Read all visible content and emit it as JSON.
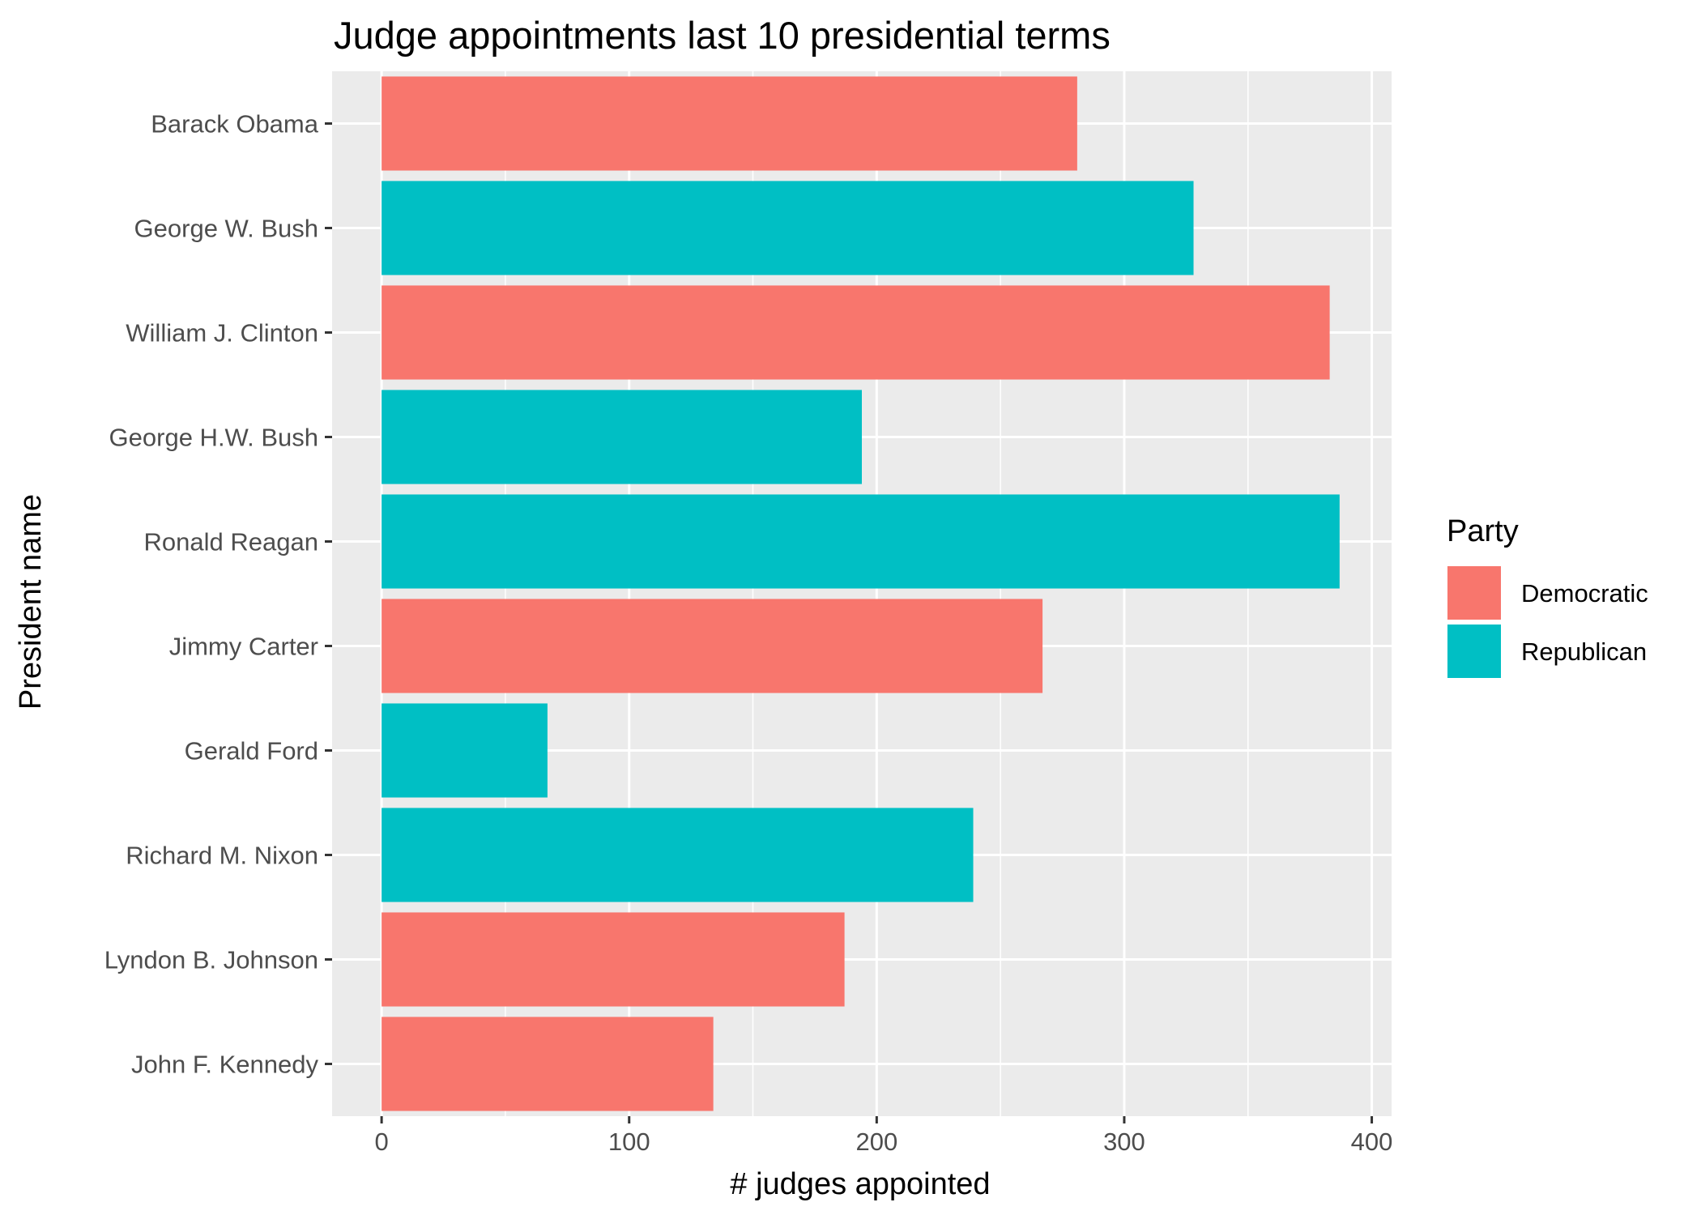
{
  "chart_data": {
    "type": "bar",
    "orientation": "horizontal",
    "title": "Judge appointments last 10 presidential terms",
    "xlabel": "# judges appointed",
    "ylabel": "President name",
    "xlim": [
      -20,
      408
    ],
    "x_ticks": [
      0,
      100,
      200,
      300,
      400
    ],
    "grid": true,
    "legend": {
      "title": "Party",
      "position": "right",
      "entries": [
        {
          "label": "Democratic",
          "color": "#F8766D"
        },
        {
          "label": "Republican",
          "color": "#00BFC4"
        }
      ]
    },
    "categories": [
      "Barack Obama",
      "George W. Bush",
      "William J. Clinton",
      "George H.W. Bush",
      "Ronald Reagan",
      "Jimmy Carter",
      "Gerald Ford",
      "Richard M. Nixon",
      "Lyndon B. Johnson",
      "John F. Kennedy"
    ],
    "values": [
      281,
      328,
      383,
      194,
      387,
      267,
      67,
      239,
      187,
      134
    ],
    "party": [
      "Democratic",
      "Republican",
      "Democratic",
      "Republican",
      "Republican",
      "Democratic",
      "Republican",
      "Republican",
      "Democratic",
      "Democratic"
    ]
  },
  "colors": {
    "panel_background": "#EBEBEB",
    "grid_major": "#FFFFFF",
    "tick_text": "#4D4D4D",
    "tick_mark": "#333333"
  }
}
